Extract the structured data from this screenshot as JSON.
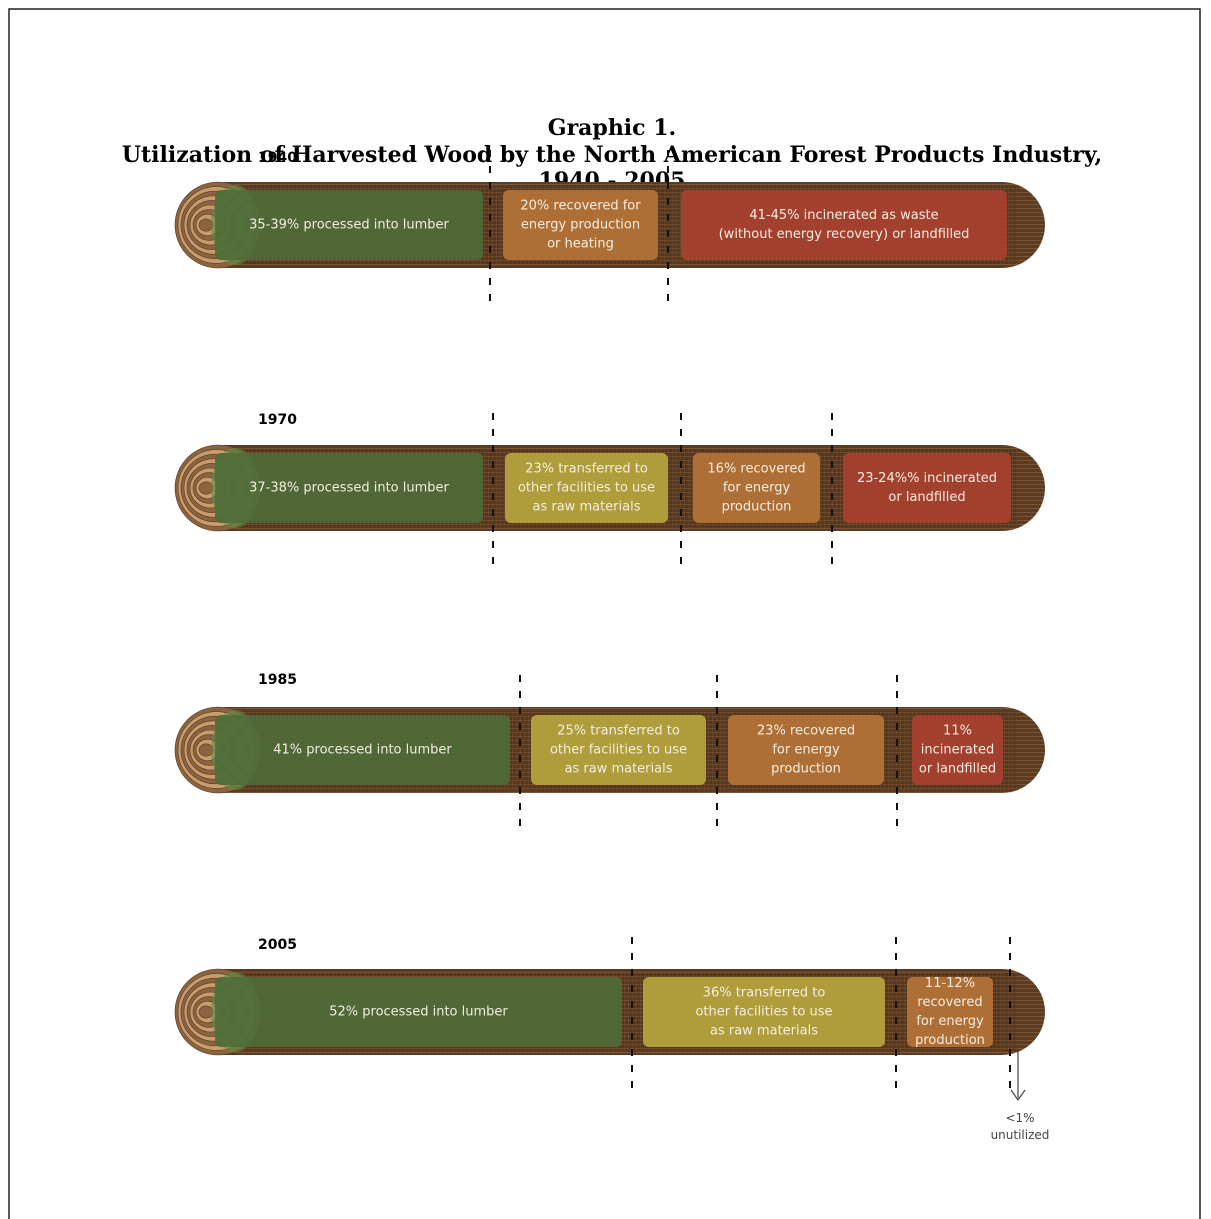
{
  "header": {
    "title_lines": [
      "Graphic 1.",
      "Utilization of Harvested Wood by the North American Forest Products Industry,",
      "1940 - 2005"
    ]
  },
  "rows": [
    {
      "year": "1940",
      "segments": [
        {
          "lines": [
            "35-39% processed into lumber"
          ]
        },
        {
          "lines": [
            "20% recovered for",
            "energy production",
            "or heating"
          ]
        },
        {
          "lines": [
            "41-45% incinerated as waste",
            "(without energy recovery) or landfilled"
          ]
        }
      ]
    },
    {
      "year": "1970",
      "segments": [
        {
          "lines": [
            "37-38% processed into lumber"
          ]
        },
        {
          "lines": [
            "23% transferred to",
            "other facilities to use",
            "as raw materials"
          ]
        },
        {
          "lines": [
            "16% recovered",
            "for energy",
            "production"
          ]
        },
        {
          "lines": [
            "23-24%% incinerated",
            "or landfilled"
          ]
        }
      ]
    },
    {
      "year": "1985",
      "segments": [
        {
          "lines": [
            "41% processed into lumber"
          ]
        },
        {
          "lines": [
            "25% transferred to",
            "other facilities to use",
            "as raw materials"
          ]
        },
        {
          "lines": [
            "23% recovered",
            "for energy",
            "production"
          ]
        },
        {
          "lines": [
            "11%",
            "incinerated",
            "or landfilled"
          ]
        }
      ]
    },
    {
      "year": "2005",
      "segments": [
        {
          "lines": [
            "52% processed into lumber"
          ]
        },
        {
          "lines": [
            "36% transferred to",
            "other facilities to use",
            "as raw materials"
          ]
        },
        {
          "lines": [
            "11-12%",
            "recovered",
            "for energy",
            "production"
          ]
        }
      ]
    }
  ],
  "footnote": {
    "lines": [
      "<1%",
      "unutilized"
    ]
  }
}
